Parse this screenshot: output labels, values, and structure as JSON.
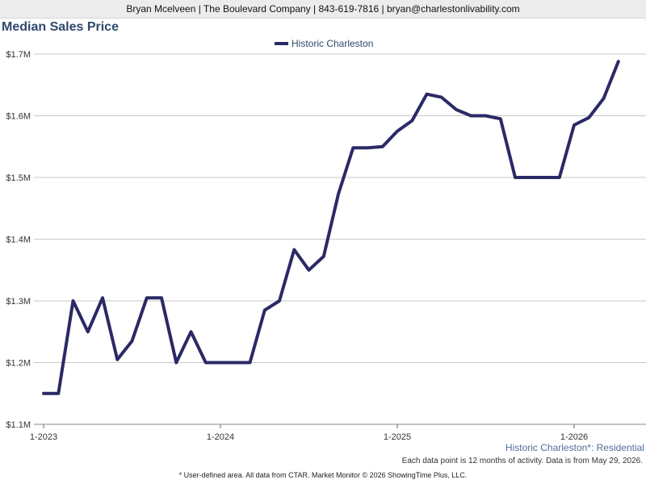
{
  "header": {
    "contact": "Bryan Mcelveen | The Boulevard Company | 843-619-7816 | bryan@charlestonlivability.com"
  },
  "chart_data": {
    "type": "line",
    "title": "Median Sales Price",
    "xlabel": "",
    "ylabel": "",
    "ylim": [
      1100000,
      1700000
    ],
    "y_ticks": [
      "$1.1M",
      "$1.2M",
      "$1.3M",
      "$1.4M",
      "$1.5M",
      "$1.6M",
      "$1.7M"
    ],
    "y_tick_values": [
      1100000,
      1200000,
      1300000,
      1400000,
      1500000,
      1600000,
      1700000
    ],
    "x_ticks": [
      "1-2023",
      "1-2024",
      "1-2025",
      "1-2026"
    ],
    "grid": true,
    "legend_position": "top",
    "series": [
      {
        "name": "Historic Charleston",
        "color": "#2b2a66",
        "x": [
          "1-2023",
          "2-2023",
          "3-2023",
          "4-2023",
          "5-2023",
          "6-2023",
          "7-2023",
          "8-2023",
          "9-2023",
          "10-2023",
          "11-2023",
          "12-2023",
          "1-2024",
          "2-2024",
          "3-2024",
          "4-2024",
          "5-2024",
          "6-2024",
          "7-2024",
          "8-2024",
          "9-2024",
          "10-2024",
          "11-2024",
          "12-2024",
          "1-2025",
          "2-2025",
          "3-2025",
          "4-2025",
          "5-2025",
          "6-2025",
          "7-2025",
          "8-2025",
          "9-2025",
          "10-2025",
          "11-2025",
          "12-2025",
          "1-2026",
          "2-2026",
          "3-2026",
          "4-2026"
        ],
        "values": [
          1150000,
          1150000,
          1300000,
          1250000,
          1305000,
          1205000,
          1235000,
          1305000,
          1305000,
          1200000,
          1250000,
          1200000,
          1200000,
          1200000,
          1200000,
          1285000,
          1300000,
          1383000,
          1350000,
          1372000,
          1473000,
          1548000,
          1548000,
          1550000,
          1575000,
          1592000,
          1635000,
          1630000,
          1610000,
          1600000,
          1600000,
          1595000,
          1500000,
          1500000,
          1500000,
          1500000,
          1585000,
          1597000,
          1628000,
          1688000
        ]
      }
    ]
  },
  "region_label": "Historic Charleston*: Residential",
  "data_note": "Each data point is 12 months of activity. Data is from May 29, 2026.",
  "footer": "* User-defined area. All data from CTAR. Market Monitor © 2026 ShowingTime Plus, LLC."
}
